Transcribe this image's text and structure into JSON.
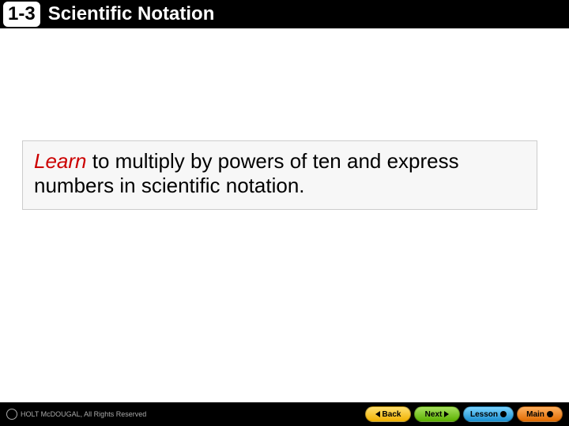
{
  "header": {
    "section_number": "1-3",
    "title": "Scientific Notation",
    "bg_color": "#000000",
    "title_color": "#ffffff",
    "badge_bg": "#ffffff",
    "badge_text_color": "#000000"
  },
  "learn_box": {
    "learn_label": "Learn",
    "body_text": " to multiply by powers of ten and express numbers in scientific notation.",
    "learn_color": "#cc0000",
    "text_color": "#000000",
    "bg_color": "#f7f7f7",
    "border_color": "#cccccc",
    "font_size_pt": 20
  },
  "footer": {
    "copyright_text": "HOLT McDOUGAL, All Rights Reserved",
    "copyright_color": "#a9a9a9",
    "bg_color": "#000000",
    "buttons": {
      "back": {
        "label": "Back",
        "bg": "#f0b000"
      },
      "next": {
        "label": "Next",
        "bg": "#5bb000"
      },
      "lesson": {
        "label": "Lesson",
        "bg": "#1a8fd0"
      },
      "main": {
        "label": "Main",
        "bg": "#e06a00"
      }
    }
  }
}
